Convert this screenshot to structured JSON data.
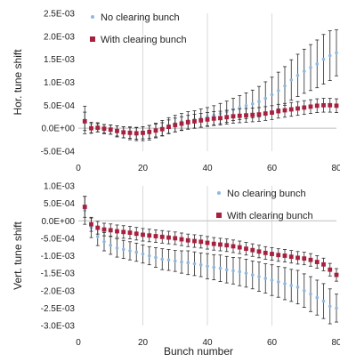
{
  "chart_data": [
    {
      "type": "scatter",
      "panel": "top",
      "title": "",
      "xlabel": "",
      "ylabel": "Hor. tune shift",
      "xlim": [
        0,
        80
      ],
      "ylim": [
        -0.0005,
        0.0025
      ],
      "yticks": [
        "-5.0E-04",
        "0.0E+00",
        "5.0E-04",
        "1.0E-03",
        "1.5E-03",
        "2.0E-03",
        "2.5E-03"
      ],
      "xticks": [
        "0",
        "20",
        "40",
        "60",
        "80"
      ],
      "grid": "vertical",
      "legend_position": "top-left",
      "error_bars": true,
      "series": [
        {
          "name": "No clearing bunch",
          "marker": "dot",
          "color": "#8fb8e0",
          "x": [
            2,
            4,
            6,
            8,
            10,
            12,
            14,
            16,
            18,
            20,
            22,
            24,
            26,
            28,
            30,
            32,
            34,
            36,
            38,
            40,
            42,
            44,
            46,
            48,
            50,
            52,
            54,
            56,
            58,
            60,
            62,
            64,
            66,
            68,
            70,
            72,
            74,
            76,
            78,
            80
          ],
          "y": [
            0.00018,
            1e-05,
            2e-05,
            -2e-05,
            -3e-05,
            -7e-05,
            -9e-05,
            -0.00011,
            -0.00013,
            -0.00012,
            -0.0001,
            -5e-05,
            0.0,
            6e-05,
            0.0001,
            0.00014,
            0.00017,
            0.00019,
            0.00022,
            0.00025,
            0.00028,
            0.00032,
            0.00036,
            0.00041,
            0.00045,
            0.00049,
            0.00053,
            0.00058,
            0.00065,
            0.00073,
            0.00082,
            0.00092,
            0.00105,
            0.00115,
            0.00124,
            0.00132,
            0.0014,
            0.0015,
            0.00158,
            0.00164
          ],
          "err": [
            0.0003,
            0.00012,
            0.0001,
            0.0001,
            0.0001,
            0.00012,
            0.00012,
            0.00014,
            0.00014,
            0.00015,
            0.00016,
            0.00016,
            0.00017,
            0.00017,
            0.00018,
            0.00018,
            0.00019,
            0.00019,
            0.0002,
            0.0002,
            0.00021,
            0.00022,
            0.00023,
            0.00024,
            0.00026,
            0.00028,
            0.0003,
            0.00033,
            0.00036,
            0.00038,
            0.0004,
            0.00042,
            0.00044,
            0.00046,
            0.00048,
            0.0005,
            0.00052,
            0.00054,
            0.00054,
            0.0005
          ]
        },
        {
          "name": "With clearing bunch",
          "marker": "square",
          "color": "#a8203e",
          "x": [
            2,
            4,
            6,
            8,
            10,
            12,
            14,
            16,
            18,
            20,
            22,
            24,
            26,
            28,
            30,
            32,
            34,
            36,
            38,
            40,
            42,
            44,
            46,
            48,
            50,
            52,
            54,
            56,
            58,
            60,
            62,
            64,
            66,
            68,
            70,
            72,
            74,
            76,
            78,
            80
          ],
          "y": [
            0.00015,
            0.0,
            1e-05,
            -1e-05,
            -3e-05,
            -6e-05,
            -9e-05,
            -0.0001,
            -0.00011,
            -0.0001,
            -8e-05,
            -5e-05,
            -2e-05,
            3e-05,
            7e-05,
            0.0001,
            0.00013,
            0.00015,
            0.00017,
            0.00019,
            0.00021,
            0.00022,
            0.00024,
            0.00026,
            0.00027,
            0.00028,
            0.00029,
            0.0003,
            0.00032,
            0.00034,
            0.00037,
            0.00039,
            0.00041,
            0.00043,
            0.00045,
            0.00047,
            0.00049,
            0.0005,
            0.0005,
            0.00049
          ],
          "err": [
            0.0002,
            0.0001,
            9e-05,
            9e-05,
            0.0001,
            0.00011,
            0.00012,
            0.00012,
            0.00013,
            0.00013,
            0.00014,
            0.00014,
            0.00014,
            0.00015,
            0.00015,
            0.00015,
            0.00015,
            0.00015,
            0.00015,
            0.00015,
            0.00015,
            0.00015,
            0.00015,
            0.00015,
            0.00015,
            0.00015,
            0.00015,
            0.00015,
            0.00015,
            0.00015,
            0.00015,
            0.00015,
            0.00015,
            0.00015,
            0.00015,
            0.00015,
            0.00015,
            0.00015,
            0.00015,
            0.00015
          ]
        }
      ]
    },
    {
      "type": "scatter",
      "panel": "bottom",
      "title": "",
      "xlabel": "Bunch number",
      "ylabel": "Vert. tune shift",
      "xlim": [
        0,
        80
      ],
      "ylim": [
        -0.003,
        0.001
      ],
      "yticks": [
        "-3.0E-03",
        "-2.5E-03",
        "-2.0E-03",
        "-1.5E-03",
        "-1.0E-03",
        "-5.0E-04",
        "0.0E+00",
        "5.0E-04",
        "1.0E-03"
      ],
      "xticks": [
        "0",
        "20",
        "40",
        "60",
        "80"
      ],
      "grid": "vertical",
      "legend_position": "top-right",
      "error_bars": true,
      "series": [
        {
          "name": "No clearing bunch",
          "marker": "dot",
          "color": "#8fb8e0",
          "x": [
            2,
            4,
            6,
            8,
            10,
            12,
            14,
            16,
            18,
            20,
            22,
            24,
            26,
            28,
            30,
            32,
            34,
            36,
            38,
            40,
            42,
            44,
            46,
            48,
            50,
            52,
            54,
            56,
            58,
            60,
            62,
            64,
            66,
            68,
            70,
            72,
            74,
            76,
            78,
            80
          ],
          "y": [
            0.0003,
            -0.0002,
            -0.00045,
            -0.0006,
            -0.0007,
            -0.00078,
            -0.00082,
            -0.00086,
            -0.0009,
            -0.00095,
            -0.001,
            -0.00105,
            -0.0011,
            -0.00112,
            -0.00115,
            -0.00118,
            -0.0012,
            -0.00123,
            -0.00126,
            -0.0013,
            -0.00133,
            -0.00136,
            -0.0014,
            -0.00143,
            -0.00146,
            -0.0015,
            -0.00155,
            -0.0016,
            -0.00165,
            -0.0017,
            -0.00175,
            -0.0018,
            -0.00185,
            -0.0019,
            -0.002,
            -0.0021,
            -0.0022,
            -0.0023,
            -0.00245,
            -0.0025
          ],
          "err": [
            0.0004,
            0.00028,
            0.00026,
            0.00026,
            0.00026,
            0.00026,
            0.00026,
            0.00026,
            0.00026,
            0.00026,
            0.00026,
            0.00028,
            0.0003,
            0.0003,
            0.0003,
            0.00032,
            0.00034,
            0.00034,
            0.00034,
            0.00036,
            0.00036,
            0.00038,
            0.00038,
            0.00038,
            0.0004,
            0.0004,
            0.0004,
            0.00042,
            0.00042,
            0.00044,
            0.00044,
            0.00046,
            0.00046,
            0.00048,
            0.00048,
            0.0005,
            0.0005,
            0.0005,
            0.0005,
            0.0004
          ]
        },
        {
          "name": "With clearing bunch",
          "marker": "square",
          "color": "#a8203e",
          "x": [
            2,
            4,
            6,
            8,
            10,
            12,
            14,
            16,
            18,
            20,
            22,
            24,
            26,
            28,
            30,
            32,
            34,
            36,
            38,
            40,
            42,
            44,
            46,
            48,
            50,
            52,
            54,
            56,
            58,
            60,
            62,
            64,
            66,
            68,
            70,
            72,
            74,
            76,
            78,
            80
          ],
          "y": [
            0.0004,
            -0.0001,
            -0.0002,
            -0.00025,
            -0.00027,
            -0.0003,
            -0.00032,
            -0.00034,
            -0.00037,
            -0.0004,
            -0.00042,
            -0.00044,
            -0.00046,
            -0.00048,
            -0.0005,
            -0.00053,
            -0.00056,
            -0.00058,
            -0.0006,
            -0.00063,
            -0.00066,
            -0.00068,
            -0.0007,
            -0.00073,
            -0.00076,
            -0.0008,
            -0.00084,
            -0.00088,
            -0.00092,
            -0.00095,
            -0.00098,
            -0.001,
            -0.00103,
            -0.00106,
            -0.00108,
            -0.00112,
            -0.00118,
            -0.00125,
            -0.0014,
            -0.00155
          ],
          "err": [
            0.0003,
            0.0002,
            0.00018,
            0.00018,
            0.00018,
            0.00018,
            0.00018,
            0.00018,
            0.00018,
            0.00018,
            0.00018,
            0.00018,
            0.00018,
            0.00018,
            0.00018,
            0.00018,
            0.00018,
            0.00018,
            0.00018,
            0.00018,
            0.00018,
            0.00018,
            0.00018,
            0.00018,
            0.00018,
            0.00018,
            0.00018,
            0.00018,
            0.00018,
            0.00018,
            0.00018,
            0.00018,
            0.00018,
            0.00018,
            0.00018,
            0.00018,
            0.00018,
            0.00018,
            0.00018,
            0.00018
          ]
        }
      ]
    }
  ]
}
